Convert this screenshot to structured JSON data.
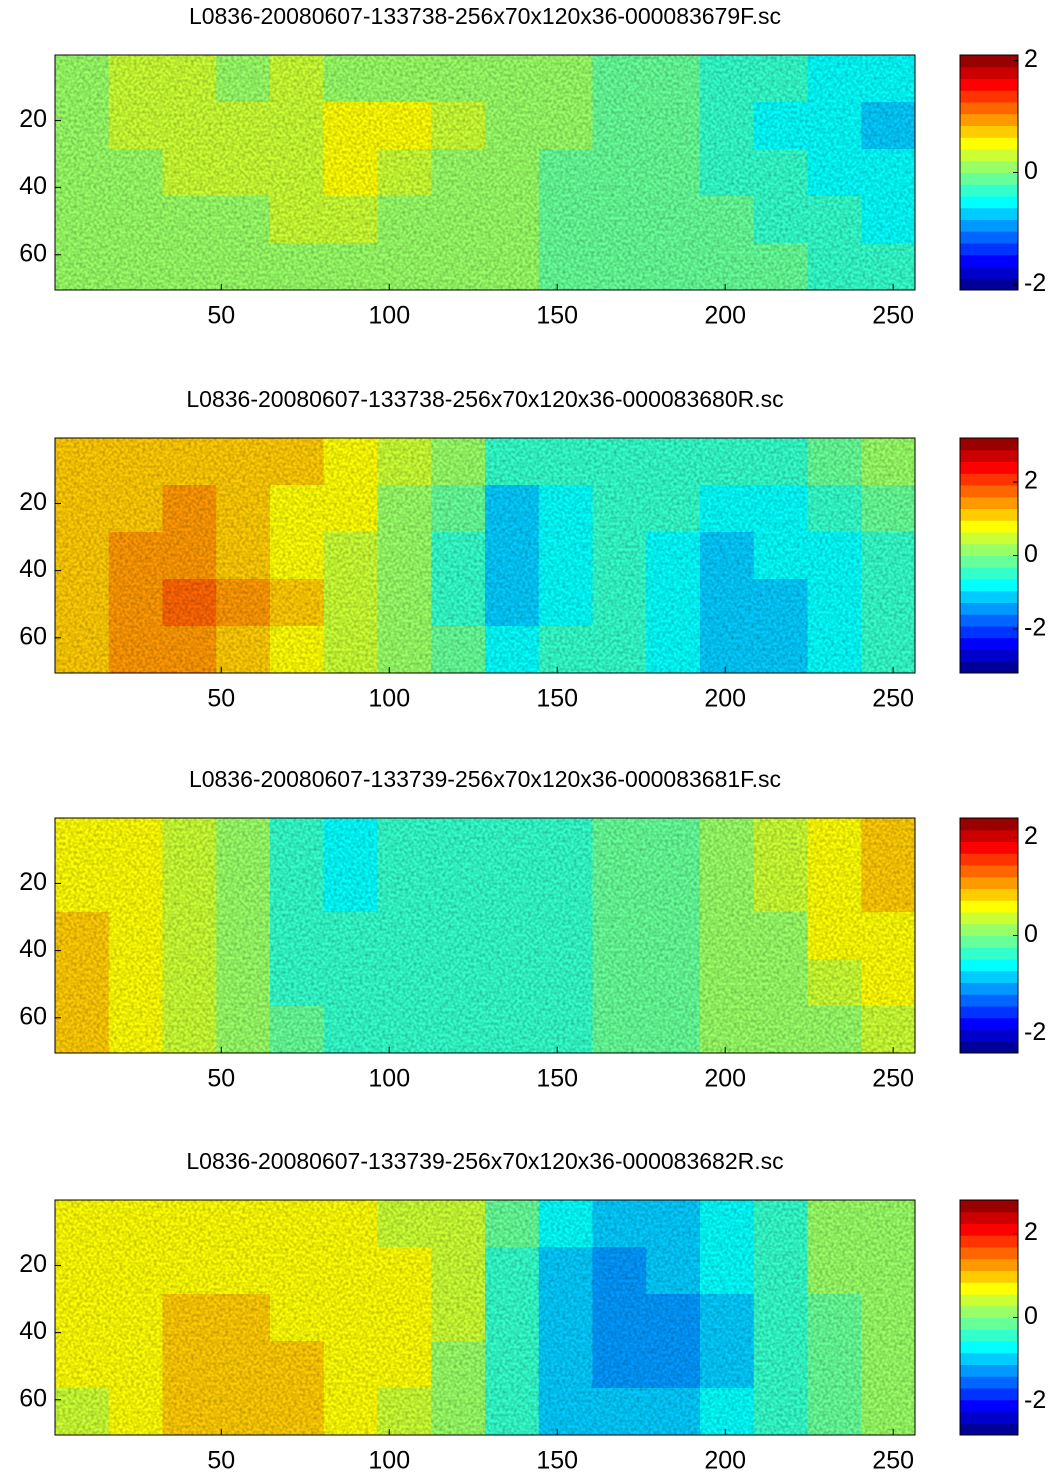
{
  "chart_data": [
    {
      "type": "heatmap",
      "title": "L0836-20080607-133738-256x70x120x36-000083679F.sc",
      "xlim": [
        0.5,
        256.5
      ],
      "ylim": [
        0.5,
        70.5
      ],
      "y_reversed": true,
      "xticks": [
        50,
        100,
        150,
        200,
        250
      ],
      "yticks": [
        20,
        40,
        60
      ],
      "clim": [
        -2.1,
        2.1
      ],
      "cticks": [
        -2,
        0,
        2
      ],
      "colormap": "jet",
      "colormap_levels": 20,
      "values": [
        [
          0.2,
          0.3,
          0.3,
          0.2,
          0.3,
          0.2,
          0.2,
          0.1,
          0,
          0,
          -0.1,
          -0.2,
          -0.3,
          -0.4,
          -0.5,
          -0.6
        ],
        [
          0.2,
          0.3,
          0.4,
          0.4,
          0.4,
          0.5,
          0.5,
          0.3,
          0.2,
          0,
          -0.1,
          -0.2,
          -0.3,
          -0.5,
          -0.6,
          -0.7
        ],
        [
          0.1,
          0.2,
          0.3,
          0.3,
          0.4,
          0.5,
          0.4,
          0.2,
          0.1,
          -0.1,
          -0.2,
          -0.2,
          -0.3,
          -0.4,
          -0.5,
          -0.6
        ],
        [
          0,
          0.1,
          0.2,
          0.2,
          0.3,
          0.3,
          0.2,
          0.2,
          0,
          -0.1,
          -0.1,
          -0.1,
          -0.2,
          -0.3,
          -0.4,
          -0.5
        ],
        [
          0,
          0,
          0.1,
          0.1,
          0.2,
          0.2,
          0.1,
          0.1,
          0,
          -0.1,
          -0.1,
          -0.1,
          -0.2,
          -0.2,
          -0.3,
          -0.4
        ]
      ]
    },
    {
      "type": "heatmap",
      "title": "L0836-20080607-133738-256x70x120x36-000083680R.sc",
      "xlim": [
        0.5,
        256.5
      ],
      "ylim": [
        0.5,
        70.5
      ],
      "y_reversed": true,
      "xticks": [
        50,
        100,
        150,
        200,
        250
      ],
      "yticks": [
        20,
        40,
        60
      ],
      "clim": [
        -3.2,
        3.2
      ],
      "cticks": [
        -2,
        0,
        2
      ],
      "colormap": "jet",
      "colormap_levels": 20,
      "values": [
        [
          1.0,
          1.2,
          1.2,
          1.1,
          1.0,
          0.8,
          0.4,
          0.0,
          -0.6,
          -0.5,
          -0.4,
          -0.5,
          -0.6,
          -0.6,
          -0.3,
          0.0
        ],
        [
          1.0,
          1.2,
          1.3,
          1.1,
          0.9,
          0.7,
          0.3,
          -0.3,
          -1.0,
          -0.8,
          -0.5,
          -0.6,
          -0.9,
          -0.8,
          -0.5,
          -0.2
        ],
        [
          1.1,
          1.3,
          1.4,
          1.2,
          0.9,
          0.6,
          0.2,
          -0.4,
          -1.2,
          -0.9,
          -0.6,
          -0.7,
          -1.0,
          -0.9,
          -0.7,
          -0.4
        ],
        [
          1.2,
          1.5,
          1.6,
          1.4,
          1.0,
          0.6,
          0.2,
          -0.4,
          -1.1,
          -0.8,
          -0.6,
          -0.8,
          -1.1,
          -1.0,
          -0.8,
          -0.5
        ],
        [
          1.1,
          1.4,
          1.4,
          1.2,
          0.9,
          0.6,
          0.2,
          -0.2,
          -0.7,
          -0.6,
          -0.6,
          -0.8,
          -1.0,
          -1.0,
          -0.8,
          -0.5
        ]
      ]
    },
    {
      "type": "heatmap",
      "title": "L0836-20080607-133739-256x70x120x36-000083681F.sc",
      "xlim": [
        0.5,
        256.5
      ],
      "ylim": [
        0.5,
        70.5
      ],
      "y_reversed": true,
      "xticks": [
        50,
        100,
        150,
        200,
        250
      ],
      "yticks": [
        20,
        40,
        60
      ],
      "clim": [
        -2.4,
        2.4
      ],
      "cticks": [
        -2,
        0,
        2
      ],
      "colormap": "jet",
      "colormap_levels": 20,
      "values": [
        [
          0.6,
          0.5,
          0.3,
          0,
          -0.4,
          -0.5,
          -0.4,
          -0.3,
          -0.3,
          -0.3,
          -0.2,
          -0.1,
          0,
          0.3,
          0.6,
          0.8
        ],
        [
          0.7,
          0.6,
          0.3,
          0,
          -0.4,
          -0.5,
          -0.4,
          -0.3,
          -0.3,
          -0.3,
          -0.2,
          -0.1,
          0,
          0.3,
          0.6,
          0.8
        ],
        [
          0.8,
          0.6,
          0.3,
          0,
          -0.3,
          -0.4,
          -0.4,
          -0.4,
          -0.4,
          -0.3,
          -0.2,
          -0.1,
          0,
          0.2,
          0.5,
          0.7
        ],
        [
          0.8,
          0.6,
          0.3,
          0,
          -0.3,
          -0.4,
          -0.4,
          -0.4,
          -0.4,
          -0.3,
          -0.2,
          -0.1,
          0,
          0.1,
          0.3,
          0.5
        ],
        [
          0.8,
          0.6,
          0.3,
          0,
          -0.2,
          -0.3,
          -0.4,
          -0.4,
          -0.4,
          -0.3,
          -0.2,
          -0.1,
          0,
          0.1,
          0.2,
          0.3
        ]
      ]
    },
    {
      "type": "heatmap",
      "title": "L0836-20080607-133739-256x70x120x36-000083682R.sc",
      "xlim": [
        0.5,
        256.5
      ],
      "ylim": [
        0.5,
        70.5
      ],
      "y_reversed": true,
      "xticks": [
        50,
        100,
        150,
        200,
        250
      ],
      "yticks": [
        20,
        40,
        60
      ],
      "clim": [
        -2.8,
        2.8
      ],
      "cticks": [
        -2,
        0,
        2
      ],
      "colormap": "jet",
      "colormap_levels": 20,
      "values": [
        [
          0.6,
          0.7,
          0.7,
          0.7,
          0.6,
          0.6,
          0.5,
          0.3,
          -0.2,
          -0.8,
          -1.0,
          -0.9,
          -0.6,
          -0.3,
          0,
          0.2
        ],
        [
          0.6,
          0.8,
          0.8,
          0.8,
          0.7,
          0.7,
          0.6,
          0.3,
          -0.3,
          -1.0,
          -1.3,
          -1.1,
          -0.8,
          -0.4,
          0,
          0.2
        ],
        [
          0.6,
          0.8,
          0.9,
          0.9,
          0.8,
          0.8,
          0.7,
          0.3,
          -0.4,
          -1.1,
          -1.4,
          -1.2,
          -0.9,
          -0.5,
          -0.1,
          0.1
        ],
        [
          0.6,
          0.8,
          1.0,
          1.0,
          0.9,
          0.8,
          0.6,
          0.2,
          -0.4,
          -1.1,
          -1.3,
          -1.2,
          -0.9,
          -0.5,
          -0.1,
          0.1
        ],
        [
          0.5,
          0.8,
          1.0,
          1.0,
          0.9,
          0.7,
          0.5,
          0.1,
          -0.3,
          -0.9,
          -1.1,
          -1.0,
          -0.8,
          -0.4,
          -0.1,
          0.1
        ]
      ]
    }
  ]
}
